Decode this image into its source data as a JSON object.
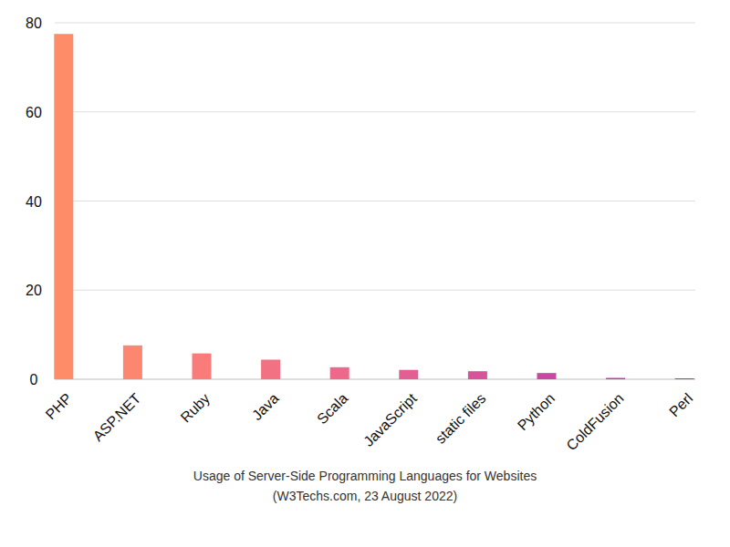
{
  "chart_data": {
    "type": "bar",
    "title": "Usage of Server-Side Programming Languages for Websites",
    "subtitle": "(W3Techs.com, 23 August 2022)",
    "categories": [
      "PHP",
      "ASP.NET",
      "Ruby",
      "Java",
      "Scala",
      "JavaScript",
      "static files",
      "Python",
      "ColdFusion",
      "Perl"
    ],
    "values": [
      77.5,
      7.6,
      5.8,
      4.4,
      2.7,
      2.1,
      1.8,
      1.4,
      0.3,
      0.2
    ],
    "colors": [
      "#ff8c69",
      "#fd8671",
      "#f97c7a",
      "#f27283",
      "#ec698c",
      "#e25f93",
      "#d8549a",
      "#c949a0",
      "#b83fa4",
      "#a53aa8"
    ],
    "ylim": [
      0,
      80
    ],
    "yticks": [
      0,
      20,
      40,
      60,
      80
    ],
    "grid": true
  }
}
